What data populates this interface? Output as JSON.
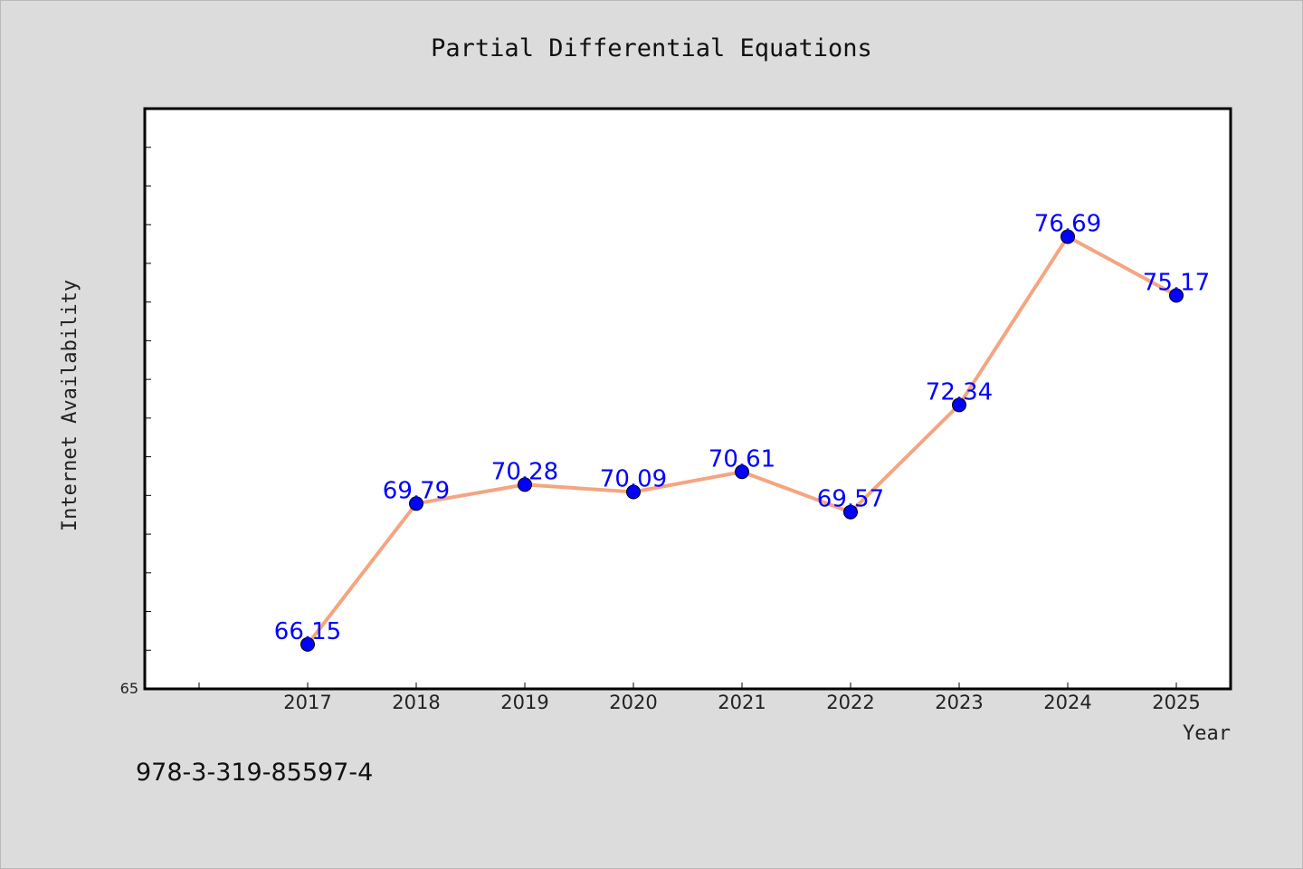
{
  "chart_data": {
    "type": "line",
    "title": "Partial Differential Equations",
    "xlabel": "Year",
    "ylabel": "Internet Availability",
    "categories": [
      "2017",
      "2018",
      "2019",
      "2020",
      "2021",
      "2022",
      "2023",
      "2024",
      "2025"
    ],
    "series": [
      {
        "values": [
          66.15,
          69.79,
          70.28,
          70.09,
          70.61,
          69.57,
          72.34,
          76.69,
          75.17
        ],
        "line_color": "#f4a582",
        "marker_color": "#0000ff",
        "label_color": "#0000ff"
      }
    ],
    "ylim": [
      65,
      80
    ],
    "y_tick_label_shown": "65",
    "grid": false,
    "legend": "none"
  },
  "footer_text": "978-3-319-85597-4"
}
